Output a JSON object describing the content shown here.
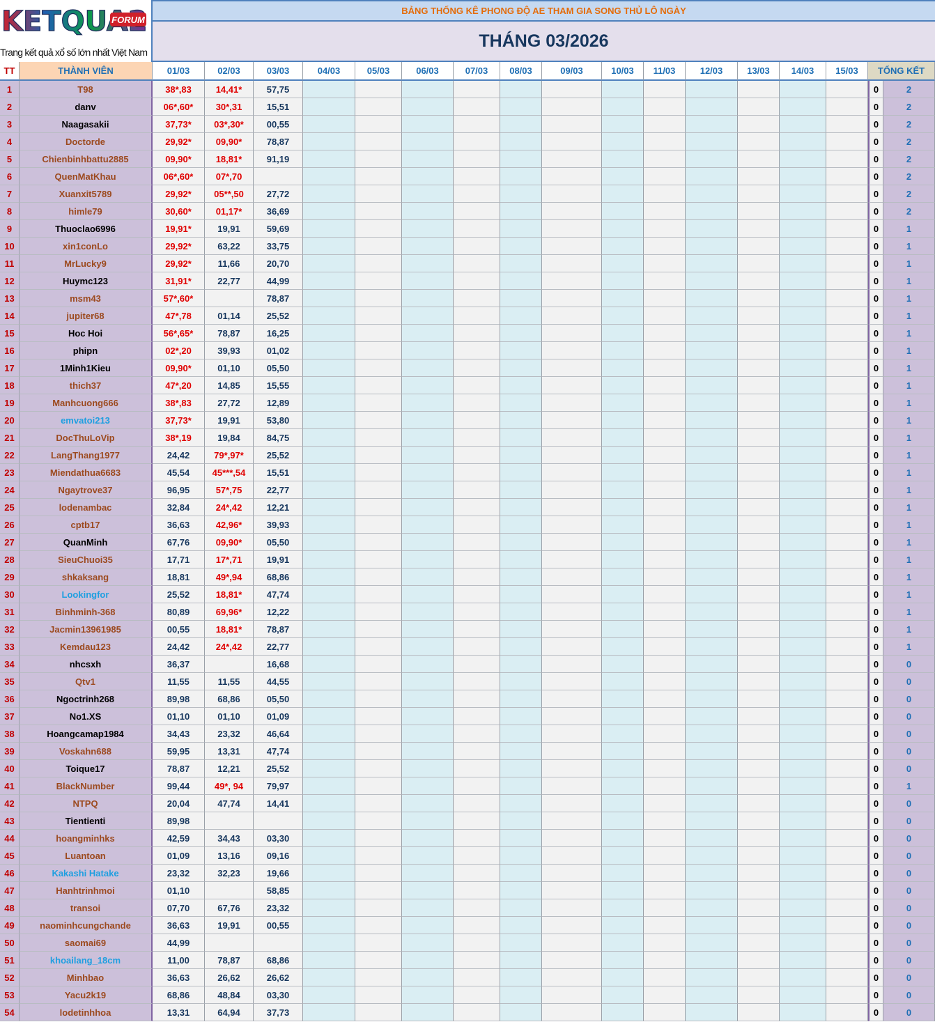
{
  "logo": {
    "text": "KETQUA2",
    "badge": "FORUM",
    "tagline": "Trang kết quả xổ số lớn nhất Việt Nam"
  },
  "header": {
    "subtitle": "BẢNG THỐNG KÊ PHONG ĐỘ AE THAM GIA SONG THỦ LÔ NGÀY",
    "title": "THÁNG 03/2026"
  },
  "columns": {
    "tt": "TT",
    "member": "THÀNH VIÊN",
    "dates": [
      "01/03",
      "02/03",
      "03/03",
      "04/03",
      "05/03",
      "06/03",
      "07/03",
      "08/03",
      "09/03",
      "10/03",
      "11/03",
      "12/03",
      "13/03",
      "14/03",
      "15/03"
    ],
    "summary": "TỔNG KẾT"
  },
  "rows": [
    {
      "tt": 1,
      "name": "T98",
      "name_color": "#9c4a1f",
      "entries": [
        "38*,83",
        "14,41*",
        "57,75"
      ],
      "tong_ket": [
        0,
        2
      ]
    },
    {
      "tt": 2,
      "name": "danv",
      "name_color": "#000000",
      "entries": [
        "06*,60*",
        "30*,31",
        "15,51"
      ],
      "tong_ket": [
        0,
        2
      ]
    },
    {
      "tt": 3,
      "name": "Naagasakii",
      "name_color": "#000000",
      "entries": [
        "37,73*",
        "03*,30*",
        "00,55"
      ],
      "tong_ket": [
        0,
        2
      ]
    },
    {
      "tt": 4,
      "name": "Doctorde",
      "name_color": "#9c4a1f",
      "entries": [
        "29,92*",
        "09,90*",
        "78,87"
      ],
      "tong_ket": [
        0,
        2
      ]
    },
    {
      "tt": 5,
      "name": "Chienbinhbattu2885",
      "name_color": "#9c4a1f",
      "entries": [
        "09,90*",
        "18,81*",
        "91,19"
      ],
      "tong_ket": [
        0,
        2
      ]
    },
    {
      "tt": 6,
      "name": "QuenMatKhau",
      "name_color": "#9c4a1f",
      "entries": [
        "06*,60*",
        "07*,70",
        null
      ],
      "tong_ket": [
        0,
        2
      ]
    },
    {
      "tt": 7,
      "name": "Xuanxit5789",
      "name_color": "#9c4a1f",
      "entries": [
        "29,92*",
        "05**,50",
        "27,72"
      ],
      "tong_ket": [
        0,
        2
      ]
    },
    {
      "tt": 8,
      "name": "himle79",
      "name_color": "#9c4a1f",
      "entries": [
        "30,60*",
        "01,17*",
        "36,69"
      ],
      "tong_ket": [
        0,
        2
      ]
    },
    {
      "tt": 9,
      "name": "Thuoclao6996",
      "name_color": "#000000",
      "entries": [
        "19,91*",
        "19,91",
        "59,69"
      ],
      "tong_ket": [
        0,
        1
      ]
    },
    {
      "tt": 10,
      "name": "xin1conLo",
      "name_color": "#9c4a1f",
      "entries": [
        "29,92*",
        "63,22",
        "33,75"
      ],
      "tong_ket": [
        0,
        1
      ]
    },
    {
      "tt": 11,
      "name": "MrLucky9",
      "name_color": "#9c4a1f",
      "entries": [
        "29,92*",
        "11,66",
        "20,70"
      ],
      "tong_ket": [
        0,
        1
      ]
    },
    {
      "tt": 12,
      "name": "Huymc123",
      "name_color": "#000000",
      "entries": [
        "31,91*",
        "22,77",
        "44,99"
      ],
      "tong_ket": [
        0,
        1
      ]
    },
    {
      "tt": 13,
      "name": "msm43",
      "name_color": "#9c4a1f",
      "entries": [
        "57*,60*",
        null,
        "78,87"
      ],
      "tong_ket": [
        0,
        1
      ]
    },
    {
      "tt": 14,
      "name": "jupiter68",
      "name_color": "#9c4a1f",
      "entries": [
        "47*,78",
        "01,14",
        "25,52"
      ],
      "tong_ket": [
        0,
        1
      ]
    },
    {
      "tt": 15,
      "name": "Hoc Hoi",
      "name_color": "#000000",
      "entries": [
        "56*,65*",
        "78,87",
        "16,25"
      ],
      "tong_ket": [
        0,
        1
      ]
    },
    {
      "tt": 16,
      "name": "phipn",
      "name_color": "#000000",
      "entries": [
        "02*,20",
        "39,93",
        "01,02"
      ],
      "tong_ket": [
        0,
        1
      ]
    },
    {
      "tt": 17,
      "name": "1Minh1Kieu",
      "name_color": "#000000",
      "entries": [
        "09,90*",
        "01,10",
        "05,50"
      ],
      "tong_ket": [
        0,
        1
      ]
    },
    {
      "tt": 18,
      "name": "thich37",
      "name_color": "#9c4a1f",
      "entries": [
        "47*,20",
        "14,85",
        "15,55"
      ],
      "tong_ket": [
        0,
        1
      ]
    },
    {
      "tt": 19,
      "name": "Manhcuong666",
      "name_color": "#9c4a1f",
      "entries": [
        "38*,83",
        "27,72",
        "12,89"
      ],
      "tong_ket": [
        0,
        1
      ]
    },
    {
      "tt": 20,
      "name": "emvatoi213",
      "name_color": "#1e9fe0",
      "entries": [
        "37,73*",
        "19,91",
        "53,80"
      ],
      "tong_ket": [
        0,
        1
      ]
    },
    {
      "tt": 21,
      "name": "DocThuLoVip",
      "name_color": "#9c4a1f",
      "entries": [
        "38*,19",
        "19,84",
        "84,75"
      ],
      "tong_ket": [
        0,
        1
      ]
    },
    {
      "tt": 22,
      "name": "LangThang1977",
      "name_color": "#9c4a1f",
      "entries": [
        "24,42",
        "79*,97*",
        "25,52"
      ],
      "tong_ket": [
        0,
        1
      ]
    },
    {
      "tt": 23,
      "name": "Miendathua6683",
      "name_color": "#9c4a1f",
      "entries": [
        "45,54",
        "45***,54",
        "15,51"
      ],
      "tong_ket": [
        0,
        1
      ]
    },
    {
      "tt": 24,
      "name": "Ngaytrove37",
      "name_color": "#9c4a1f",
      "entries": [
        "96,95",
        "57*,75",
        "22,77"
      ],
      "tong_ket": [
        0,
        1
      ]
    },
    {
      "tt": 25,
      "name": "lodenambac",
      "name_color": "#9c4a1f",
      "entries": [
        "32,84",
        "24*,42",
        "12,21"
      ],
      "tong_ket": [
        0,
        1
      ]
    },
    {
      "tt": 26,
      "name": "cptb17",
      "name_color": "#9c4a1f",
      "entries": [
        "36,63",
        "42,96*",
        "39,93"
      ],
      "tong_ket": [
        0,
        1
      ]
    },
    {
      "tt": 27,
      "name": "QuanMinh",
      "name_color": "#000000",
      "entries": [
        "67,76",
        "09,90*",
        "05,50"
      ],
      "tong_ket": [
        0,
        1
      ]
    },
    {
      "tt": 28,
      "name": "SieuChuoi35",
      "name_color": "#9c4a1f",
      "entries": [
        "17,71",
        "17*,71",
        "19,91"
      ],
      "tong_ket": [
        0,
        1
      ]
    },
    {
      "tt": 29,
      "name": "shkaksang",
      "name_color": "#9c4a1f",
      "entries": [
        "18,81",
        "49*,94",
        "68,86"
      ],
      "tong_ket": [
        0,
        1
      ]
    },
    {
      "tt": 30,
      "name": "Lookingfor",
      "name_color": "#1e9fe0",
      "entries": [
        "25,52",
        "18,81*",
        "47,74"
      ],
      "tong_ket": [
        0,
        1
      ]
    },
    {
      "tt": 31,
      "name": "Binhminh-368",
      "name_color": "#9c4a1f",
      "entries": [
        "80,89",
        "69,96*",
        "12,22"
      ],
      "tong_ket": [
        0,
        1
      ]
    },
    {
      "tt": 32,
      "name": "Jacmin13961985",
      "name_color": "#9c4a1f",
      "entries": [
        "00,55",
        "18,81*",
        "78,87"
      ],
      "tong_ket": [
        0,
        1
      ]
    },
    {
      "tt": 33,
      "name": "Kemdau123",
      "name_color": "#9c4a1f",
      "entries": [
        "24,42",
        "24*,42",
        "22,77"
      ],
      "tong_ket": [
        0,
        1
      ]
    },
    {
      "tt": 34,
      "name": "nhcsxh",
      "name_color": "#000000",
      "entries": [
        "36,37",
        null,
        "16,68"
      ],
      "tong_ket": [
        0,
        0
      ]
    },
    {
      "tt": 35,
      "name": "Qtv1",
      "name_color": "#9c4a1f",
      "entries": [
        "11,55",
        "11,55",
        "44,55"
      ],
      "tong_ket": [
        0,
        0
      ]
    },
    {
      "tt": 36,
      "name": "Ngoctrinh268",
      "name_color": "#000000",
      "entries": [
        "89,98",
        "68,86",
        "05,50"
      ],
      "tong_ket": [
        0,
        0
      ]
    },
    {
      "tt": 37,
      "name": "No1.XS",
      "name_color": "#000000",
      "entries": [
        "01,10",
        "01,10",
        "01,09"
      ],
      "tong_ket": [
        0,
        0
      ]
    },
    {
      "tt": 38,
      "name": "Hoangcamap1984",
      "name_color": "#000000",
      "entries": [
        "34,43",
        "23,32",
        "46,64"
      ],
      "tong_ket": [
        0,
        0
      ]
    },
    {
      "tt": 39,
      "name": "Voskahn688",
      "name_color": "#9c4a1f",
      "entries": [
        "59,95",
        "13,31",
        "47,74"
      ],
      "tong_ket": [
        0,
        0
      ]
    },
    {
      "tt": 40,
      "name": "Toique17",
      "name_color": "#000000",
      "entries": [
        "78,87",
        "12,21",
        "25,52"
      ],
      "tong_ket": [
        0,
        0
      ]
    },
    {
      "tt": 41,
      "name": "BlackNumber",
      "name_color": "#9c4a1f",
      "entries": [
        "99,44",
        "49*, 94",
        "79,97"
      ],
      "tong_ket": [
        0,
        1
      ]
    },
    {
      "tt": 42,
      "name": "NTPQ",
      "name_color": "#9c4a1f",
      "entries": [
        "20,04",
        "47,74",
        "14,41"
      ],
      "tong_ket": [
        0,
        0
      ]
    },
    {
      "tt": 43,
      "name": "Tientienti",
      "name_color": "#000000",
      "entries": [
        "89,98",
        null,
        null
      ],
      "tong_ket": [
        0,
        0
      ]
    },
    {
      "tt": 44,
      "name": "hoangminhks",
      "name_color": "#9c4a1f",
      "entries": [
        "42,59",
        "34,43",
        "03,30"
      ],
      "tong_ket": [
        0,
        0
      ]
    },
    {
      "tt": 45,
      "name": "Luantoan",
      "name_color": "#9c4a1f",
      "entries": [
        "01,09",
        "13,16",
        "09,16"
      ],
      "tong_ket": [
        0,
        0
      ]
    },
    {
      "tt": 46,
      "name": "Kakashi Hatake",
      "name_color": "#1e9fe0",
      "entries": [
        "23,32",
        "32,23",
        "19,66"
      ],
      "tong_ket": [
        0,
        0
      ]
    },
    {
      "tt": 47,
      "name": "Hanhtrinhmoi",
      "name_color": "#9c4a1f",
      "entries": [
        "01,10",
        null,
        "58,85"
      ],
      "tong_ket": [
        0,
        0
      ]
    },
    {
      "tt": 48,
      "name": "transoi",
      "name_color": "#9c4a1f",
      "entries": [
        "07,70",
        "67,76",
        "23,32"
      ],
      "tong_ket": [
        0,
        0
      ]
    },
    {
      "tt": 49,
      "name": "naominhcungchande",
      "name_color": "#9c4a1f",
      "entries": [
        "36,63",
        "19,91",
        "00,55"
      ],
      "tong_ket": [
        0,
        0
      ]
    },
    {
      "tt": 50,
      "name": "saomai69",
      "name_color": "#9c4a1f",
      "entries": [
        "44,99",
        null,
        null
      ],
      "tong_ket": [
        0,
        0
      ]
    },
    {
      "tt": 51,
      "name": "khoailang_18cm",
      "name_color": "#1e9fe0",
      "entries": [
        "11,00",
        "78,87",
        "68,86"
      ],
      "tong_ket": [
        0,
        0
      ]
    },
    {
      "tt": 52,
      "name": "Minhbao",
      "name_color": "#9c4a1f",
      "entries": [
        "36,63",
        "26,62",
        "26,62"
      ],
      "tong_ket": [
        0,
        0
      ]
    },
    {
      "tt": 53,
      "name": "Yacu2k19",
      "name_color": "#9c4a1f",
      "entries": [
        "68,86",
        "48,84",
        "03,30"
      ],
      "tong_ket": [
        0,
        0
      ]
    },
    {
      "tt": 54,
      "name": "lodetinhhoa",
      "name_color": "#9c4a1f",
      "entries": [
        "13,31",
        "64,94",
        "37,73"
      ],
      "tong_ket": [
        0,
        0
      ]
    }
  ]
}
